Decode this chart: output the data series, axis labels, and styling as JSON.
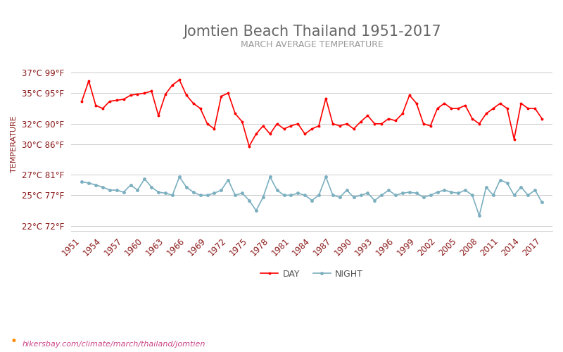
{
  "title": "Jomtien Beach Thailand 1951-2017",
  "subtitle": "MARCH AVERAGE TEMPERATURE",
  "ylabel": "TEMPERATURE",
  "watermark": "hikersbay.com/climate/march/thailand/jomtien",
  "legend_night": "NIGHT",
  "legend_day": "DAY",
  "years": [
    1951,
    1952,
    1953,
    1954,
    1955,
    1956,
    1957,
    1958,
    1959,
    1960,
    1961,
    1962,
    1963,
    1964,
    1965,
    1966,
    1967,
    1968,
    1969,
    1970,
    1971,
    1972,
    1973,
    1974,
    1975,
    1976,
    1977,
    1978,
    1979,
    1980,
    1981,
    1982,
    1983,
    1984,
    1985,
    1986,
    1987,
    1988,
    1989,
    1990,
    1991,
    1992,
    1993,
    1994,
    1995,
    1996,
    1997,
    1998,
    1999,
    2000,
    2001,
    2002,
    2003,
    2004,
    2005,
    2006,
    2007,
    2008,
    2009,
    2010,
    2011,
    2012,
    2013,
    2014,
    2015,
    2016,
    2017
  ],
  "day_temps": [
    34.2,
    36.2,
    33.8,
    33.5,
    34.2,
    34.3,
    34.4,
    34.8,
    34.9,
    35.0,
    35.2,
    32.8,
    34.9,
    35.8,
    36.3,
    34.8,
    34.0,
    33.5,
    32.0,
    31.5,
    34.7,
    35.0,
    33.0,
    32.2,
    29.8,
    31.0,
    31.8,
    31.0,
    32.0,
    31.5,
    31.8,
    32.0,
    31.0,
    31.5,
    31.8,
    34.5,
    32.0,
    31.8,
    32.0,
    31.5,
    32.2,
    32.8,
    32.0,
    32.0,
    32.5,
    32.3,
    33.0,
    34.8,
    34.0,
    32.0,
    31.8,
    33.5,
    34.0,
    33.5,
    33.5,
    33.8,
    32.5,
    32.0,
    33.0,
    33.5,
    34.0,
    33.5,
    30.5,
    34.0,
    33.5,
    33.5,
    32.5
  ],
  "night_temps": [
    26.3,
    26.2,
    26.0,
    25.8,
    25.5,
    25.5,
    25.3,
    26.0,
    25.5,
    26.6,
    25.8,
    25.3,
    25.2,
    25.0,
    26.8,
    25.8,
    25.3,
    25.0,
    25.0,
    25.2,
    25.5,
    26.5,
    25.0,
    25.2,
    24.5,
    23.5,
    24.8,
    26.8,
    25.5,
    25.0,
    25.0,
    25.2,
    25.0,
    24.5,
    25.0,
    26.8,
    25.0,
    24.8,
    25.5,
    24.8,
    25.0,
    25.2,
    24.5,
    25.0,
    25.5,
    25.0,
    25.2,
    25.3,
    25.2,
    24.8,
    25.0,
    25.3,
    25.5,
    25.3,
    25.2,
    25.5,
    25.0,
    23.0,
    25.8,
    25.0,
    26.5,
    26.2,
    25.0,
    25.8,
    25.0,
    25.5,
    24.3
  ],
  "yticks_c": [
    22,
    25,
    27,
    30,
    32,
    35,
    37
  ],
  "yticks_f": [
    72,
    77,
    81,
    86,
    90,
    95,
    99
  ],
  "ylim": [
    21.5,
    38.5
  ],
  "xtick_start": 1951,
  "xtick_step": 3,
  "xtick_end": 2018,
  "day_color": "#ff0000",
  "night_color": "#7bafc0",
  "title_color": "#666666",
  "subtitle_color": "#999999",
  "ylabel_color": "#8b1a1a",
  "tick_color": "#8b1a1a",
  "grid_color": "#cccccc",
  "bg_color": "#ffffff",
  "watermark_color": "#cc4488",
  "watermark_icon_color": "#ff8800",
  "title_fontsize": 15,
  "subtitle_fontsize": 9,
  "tick_fontsize": 8.5,
  "ylabel_fontsize": 8,
  "legend_fontsize": 9
}
